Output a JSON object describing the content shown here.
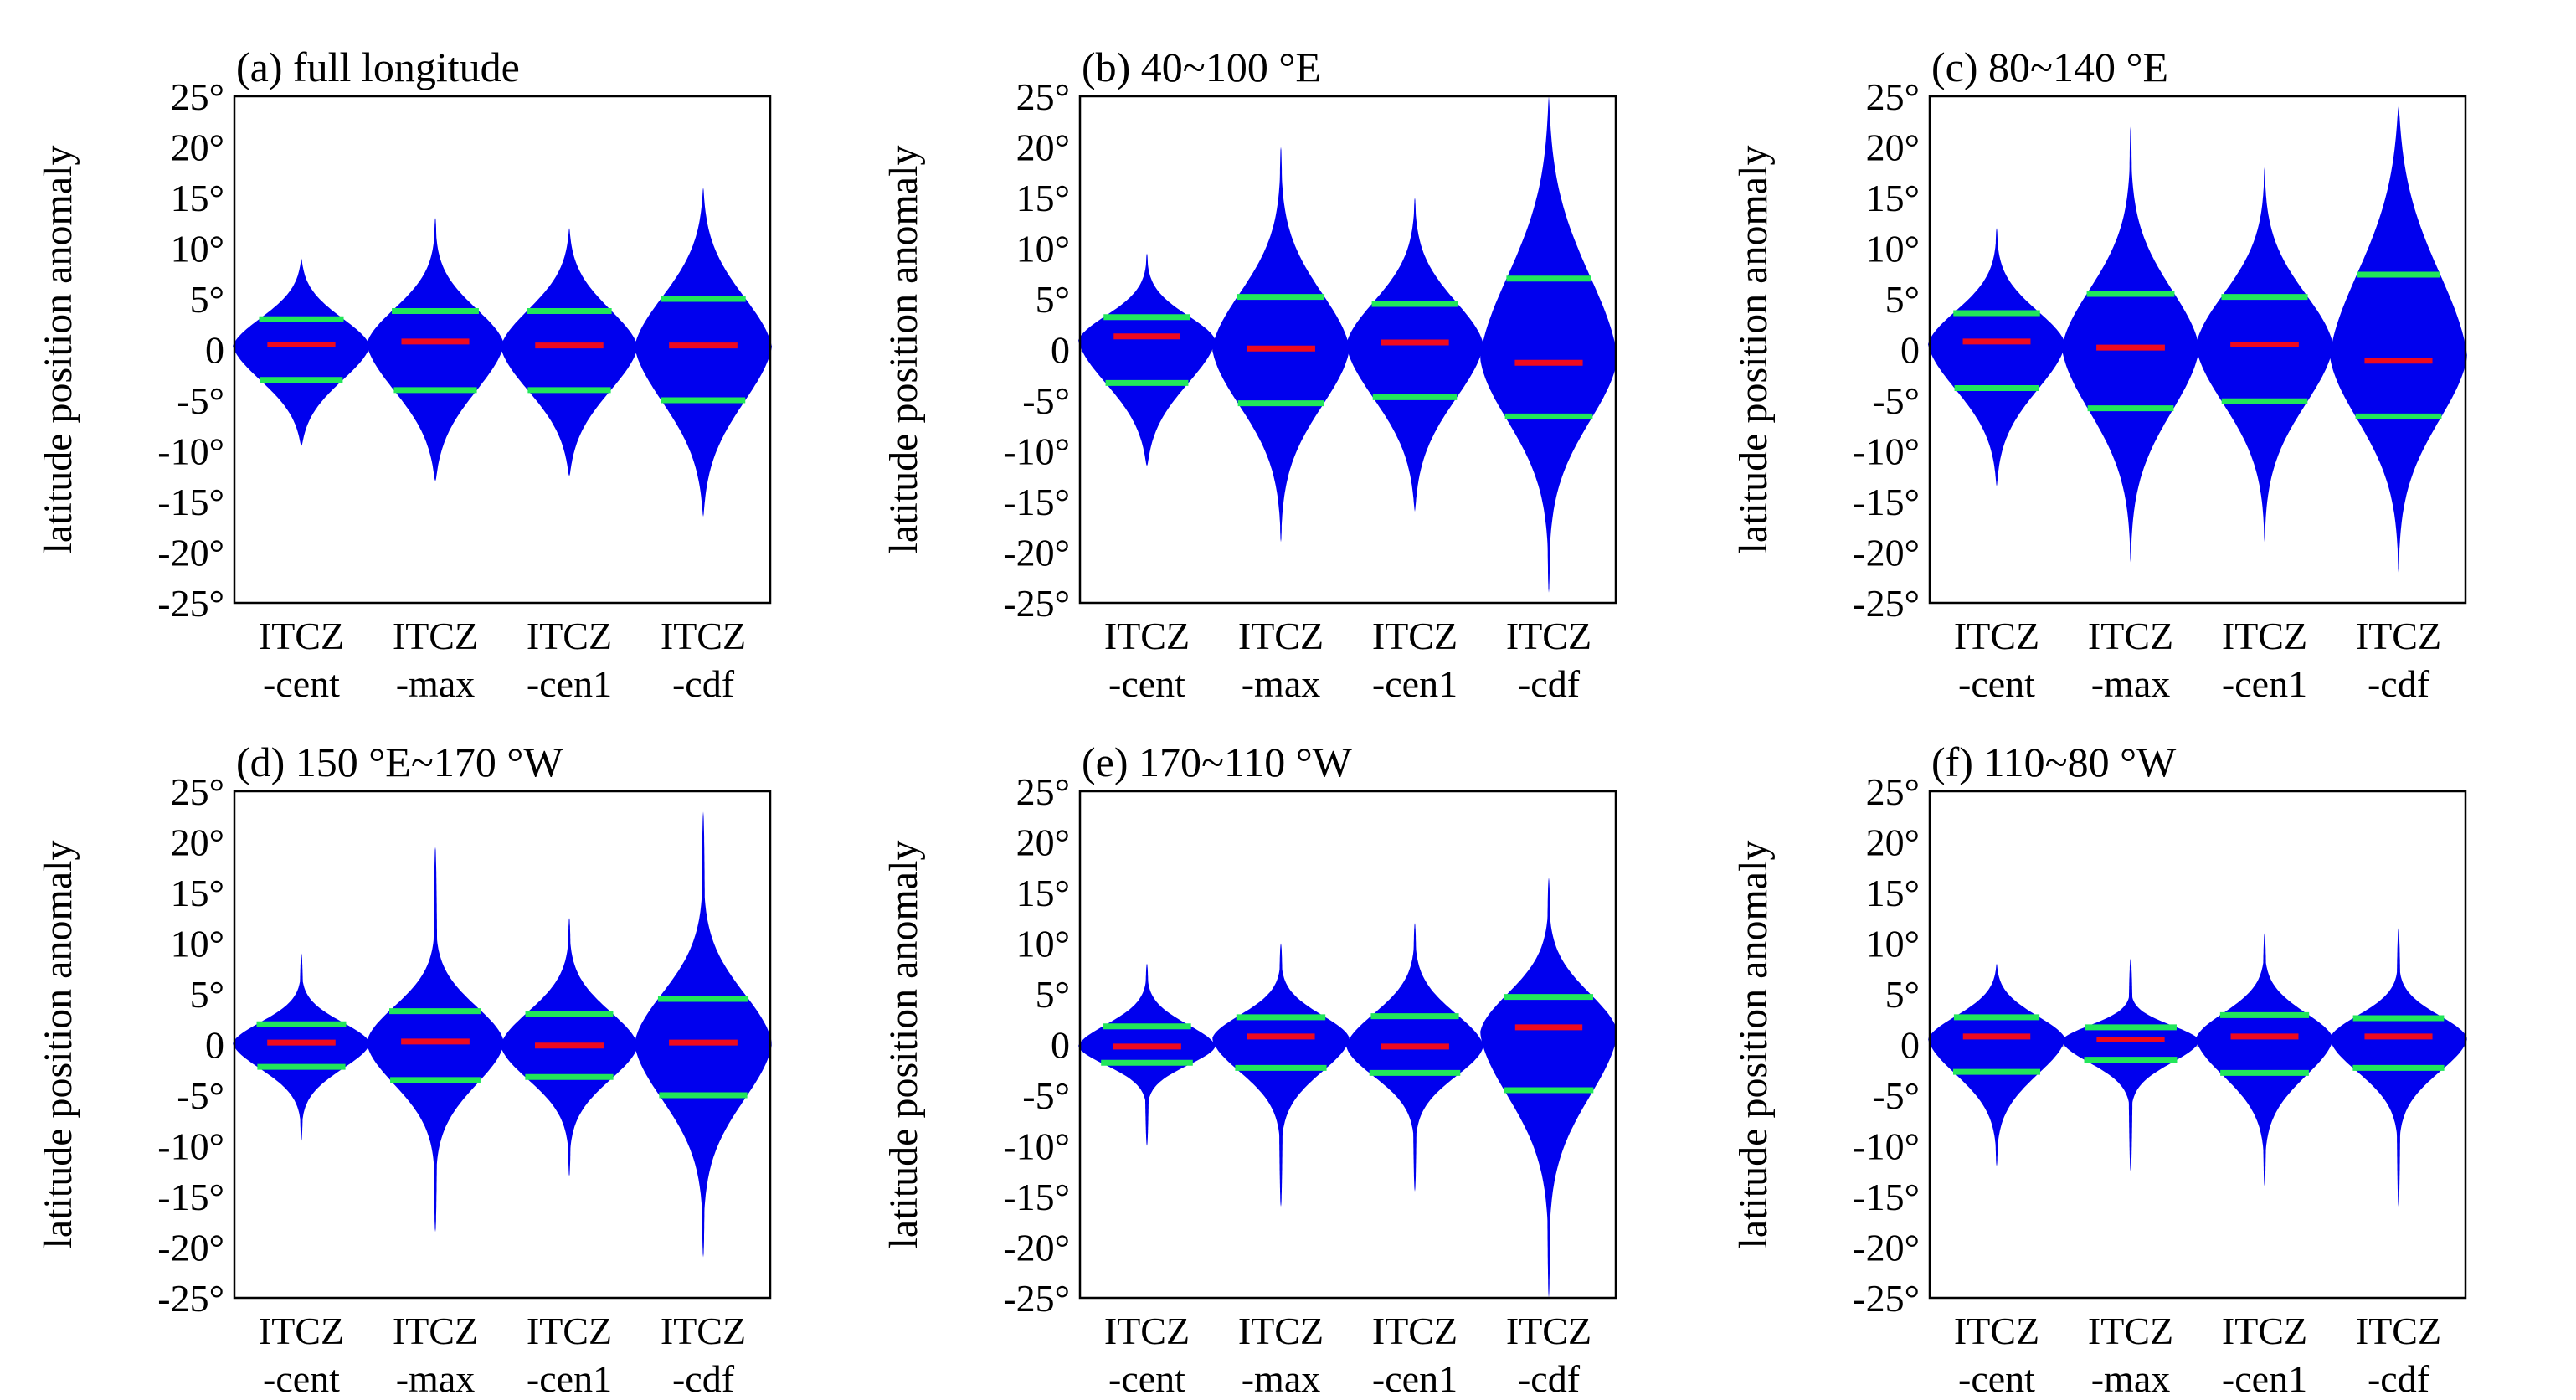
{
  "chart_data": [
    {
      "type": "violin",
      "title": "(a) full longitude",
      "ylabel": "latitude position anomaly",
      "ylim": [
        -25,
        25
      ],
      "yticks": [
        "25°",
        "20°",
        "15°",
        "10°",
        "5°",
        "0",
        "-5°",
        "-10°",
        "-15°",
        "-20°",
        "-25°"
      ],
      "categories": [
        [
          "ITCZ",
          "-cent"
        ],
        [
          "ITCZ",
          "-max"
        ],
        [
          "ITCZ",
          "-cen1"
        ],
        [
          "ITCZ",
          "-cdf"
        ]
      ],
      "violins": [
        {
          "median": 0.5,
          "q1": -3,
          "q3": 3,
          "max": 9,
          "min": -9.5
        },
        {
          "median": 0.8,
          "q1": -4,
          "q3": 3.8,
          "max": 13,
          "min": -13
        },
        {
          "median": 0.4,
          "q1": -4,
          "q3": 3.8,
          "max": 12,
          "min": -12.5
        },
        {
          "median": 0.4,
          "q1": -5,
          "q3": 5,
          "max": 16,
          "min": -16.5
        }
      ]
    },
    {
      "type": "violin",
      "title": "(b) 40~100 °E",
      "ylabel": "latitude position anomaly",
      "ylim": [
        -25,
        25
      ],
      "yticks": [
        "25°",
        "20°",
        "15°",
        "10°",
        "5°",
        "0",
        "-5°",
        "-10°",
        "-15°",
        "-20°",
        "-25°"
      ],
      "categories": [
        [
          "ITCZ",
          "-cent"
        ],
        [
          "ITCZ",
          "-max"
        ],
        [
          "ITCZ",
          "-cen1"
        ],
        [
          "ITCZ",
          "-cdf"
        ]
      ],
      "violins": [
        {
          "median": 1.3,
          "q1": -3.3,
          "q3": 3.2,
          "max": 9.5,
          "min": -11.5
        },
        {
          "median": 0.1,
          "q1": -5.3,
          "q3": 5.2,
          "max": 20,
          "min": -19
        },
        {
          "median": 0.7,
          "q1": -4.7,
          "q3": 4.5,
          "max": 15,
          "min": -16
        },
        {
          "median": -1.3,
          "q1": -6.6,
          "q3": 7,
          "max": 25,
          "min": -24
        }
      ]
    },
    {
      "type": "violin",
      "title": "(c) 80~140 °E",
      "ylabel": "latitude position anomaly",
      "ylim": [
        -25,
        25
      ],
      "yticks": [
        "25°",
        "20°",
        "15°",
        "10°",
        "5°",
        "0",
        "-5°",
        "-10°",
        "-15°",
        "-20°",
        "-25°"
      ],
      "categories": [
        [
          "ITCZ",
          "-cent"
        ],
        [
          "ITCZ",
          "-max"
        ],
        [
          "ITCZ",
          "-cen1"
        ],
        [
          "ITCZ",
          "-cdf"
        ]
      ],
      "violins": [
        {
          "median": 0.8,
          "q1": -3.8,
          "q3": 3.6,
          "max": 12,
          "min": -13.5
        },
        {
          "median": 0.2,
          "q1": -5.8,
          "q3": 5.5,
          "max": 22,
          "min": -21
        },
        {
          "median": 0.5,
          "q1": -5.1,
          "q3": 5.2,
          "max": 18,
          "min": -19
        },
        {
          "median": -1.1,
          "q1": -6.6,
          "q3": 7.4,
          "max": 24,
          "min": -22
        }
      ]
    },
    {
      "type": "violin",
      "title": "(d) 150 °E~170 °W",
      "ylabel": "latitude position anomaly",
      "ylim": [
        -25,
        25
      ],
      "yticks": [
        "25°",
        "20°",
        "15°",
        "10°",
        "5°",
        "0",
        "-5°",
        "-10°",
        "-15°",
        "-20°",
        "-25°"
      ],
      "categories": [
        [
          "ITCZ",
          "-cent"
        ],
        [
          "ITCZ",
          "-max"
        ],
        [
          "ITCZ",
          "-cen1"
        ],
        [
          "ITCZ",
          "-cdf"
        ]
      ],
      "violins": [
        {
          "median": 0.2,
          "q1": -2.2,
          "q3": 2,
          "max": 9,
          "min": -9.5
        },
        {
          "median": 0.3,
          "q1": -3.5,
          "q3": 3.3,
          "max": 19.5,
          "min": -18.5
        },
        {
          "median": -0.1,
          "q1": -3.2,
          "q3": 3,
          "max": 12.5,
          "min": -13
        },
        {
          "median": 0.2,
          "q1": -5,
          "q3": 4.5,
          "max": 23,
          "min": -21
        }
      ]
    },
    {
      "type": "violin",
      "title": "(e) 170~110 °W",
      "ylabel": "latitude position anomaly",
      "ylim": [
        -25,
        25
      ],
      "yticks": [
        "25°",
        "20°",
        "15°",
        "10°",
        "5°",
        "0",
        "-5°",
        "-10°",
        "-15°",
        "-20°",
        "-25°"
      ],
      "categories": [
        [
          "ITCZ",
          "-cent"
        ],
        [
          "ITCZ",
          "-max"
        ],
        [
          "ITCZ",
          "-cen1"
        ],
        [
          "ITCZ",
          "-cdf"
        ]
      ],
      "violins": [
        {
          "median": -0.2,
          "q1": -1.8,
          "q3": 1.8,
          "max": 8,
          "min": -10
        },
        {
          "median": 0.8,
          "q1": -2.3,
          "q3": 2.7,
          "max": 10,
          "min": -16
        },
        {
          "median": -0.2,
          "q1": -2.8,
          "q3": 2.8,
          "max": 12,
          "min": -14.5
        },
        {
          "median": 1.7,
          "q1": -4.5,
          "q3": 4.7,
          "max": 16.5,
          "min": -25
        }
      ]
    },
    {
      "type": "violin",
      "title": "(f) 110~80 °W",
      "ylabel": "latitude position anomaly",
      "ylim": [
        -25,
        25
      ],
      "yticks": [
        "25°",
        "20°",
        "15°",
        "10°",
        "5°",
        "0",
        "-5°",
        "-10°",
        "-15°",
        "-20°",
        "-25°"
      ],
      "categories": [
        [
          "ITCZ",
          "-cent"
        ],
        [
          "ITCZ",
          "-max"
        ],
        [
          "ITCZ",
          "-cen1"
        ],
        [
          "ITCZ",
          "-cdf"
        ]
      ],
      "violins": [
        {
          "median": 0.8,
          "q1": -2.7,
          "q3": 2.7,
          "max": 8,
          "min": -12
        },
        {
          "median": 0.5,
          "q1": -1.5,
          "q3": 1.7,
          "max": 8.5,
          "min": -12.5
        },
        {
          "median": 0.8,
          "q1": -2.8,
          "q3": 2.9,
          "max": 11,
          "min": -14
        },
        {
          "median": 0.8,
          "q1": -2.3,
          "q3": 2.6,
          "max": 11.5,
          "min": -16
        }
      ]
    }
  ],
  "colors": {
    "violin": "#0000ee",
    "quartile": "#22e65a",
    "median": "#ee0a1e",
    "zero_line": "#b8b8b8"
  }
}
